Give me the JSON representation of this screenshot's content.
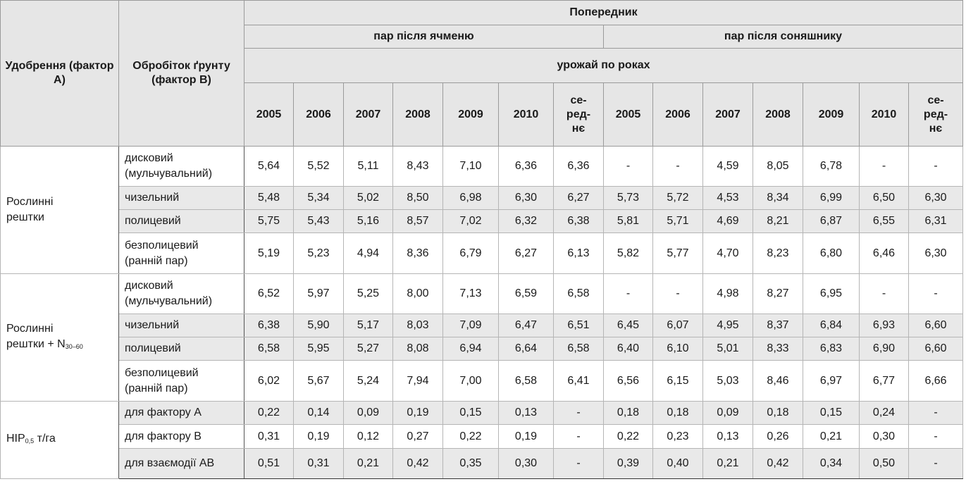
{
  "header": {
    "factor_a": "Удобрення (фактор А)",
    "factor_b": "Обробіток ґрунту (фактор В)",
    "predecessor": "Попередник",
    "subheader": "урожай по роках",
    "groups": [
      {
        "name": "пар після ячменю",
        "years": [
          "2005",
          "2006",
          "2007",
          "2008",
          "2009",
          "2010"
        ],
        "average": [
          "се-",
          "ред-",
          "нє"
        ]
      },
      {
        "name": "пар після соняшнику",
        "years": [
          "2005",
          "2006",
          "2007",
          "2008",
          "2009",
          "2010"
        ],
        "average": [
          "се-",
          "ред-",
          "нє"
        ]
      }
    ]
  },
  "body": [
    {
      "factor": {
        "lines": [
          "Рослинні",
          "рештки"
        ]
      },
      "rows": [
        {
          "treatment": [
            "дисковий",
            "(мульчувальний)"
          ],
          "values": [
            "5,64",
            "5,52",
            "5,11",
            "8,43",
            "7,10",
            "6,36",
            "6,36",
            "-",
            "-",
            "4,59",
            "8,05",
            "6,78",
            "-",
            "-"
          ]
        },
        {
          "treatment": [
            "чизельний"
          ],
          "values": [
            "5,48",
            "5,34",
            "5,02",
            "8,50",
            "6,98",
            "6,30",
            "6,27",
            "5,73",
            "5,72",
            "4,53",
            "8,34",
            "6,99",
            "6,50",
            "6,30"
          ]
        },
        {
          "treatment": [
            "полицевий"
          ],
          "values": [
            "5,75",
            "5,43",
            "5,16",
            "8,57",
            "7,02",
            "6,32",
            "6,38",
            "5,81",
            "5,71",
            "4,69",
            "8,21",
            "6,87",
            "6,55",
            "6,31"
          ]
        },
        {
          "treatment": [
            "безполицевий",
            "(ранній пар)"
          ],
          "values": [
            "5,19",
            "5,23",
            "4,94",
            "8,36",
            "6,79",
            "6,27",
            "6,13",
            "5,82",
            "5,77",
            "4,70",
            "8,23",
            "6,80",
            "6,46",
            "6,30"
          ]
        }
      ]
    },
    {
      "factor": {
        "lines": [
          "Рослинні",
          "рештки + N"
        ],
        "sub": "30–60"
      },
      "rows": [
        {
          "treatment": [
            "дисковий",
            "(мульчувальний)"
          ],
          "values": [
            "6,52",
            "5,97",
            "5,25",
            "8,00",
            "7,13",
            "6,59",
            "6,58",
            "-",
            "-",
            "4,98",
            "8,27",
            "6,95",
            "-",
            "-"
          ]
        },
        {
          "treatment": [
            "чизельний"
          ],
          "values": [
            "6,38",
            "5,90",
            "5,17",
            "8,03",
            "7,09",
            "6,47",
            "6,51",
            "6,45",
            "6,07",
            "4,95",
            "8,37",
            "6,84",
            "6,93",
            "6,60"
          ]
        },
        {
          "treatment": [
            "полицевий"
          ],
          "values": [
            "6,58",
            "5,95",
            "5,27",
            "8,08",
            "6,94",
            "6,64",
            "6,58",
            "6,40",
            "6,10",
            "5,01",
            "8,33",
            "6,83",
            "6,90",
            "6,60"
          ]
        },
        {
          "treatment": [
            "безполицевий",
            "(ранній пар)"
          ],
          "values": [
            "6,02",
            "5,67",
            "5,24",
            "7,94",
            "7,00",
            "6,58",
            "6,41",
            "6,56",
            "6,15",
            "5,03",
            "8,46",
            "6,97",
            "6,77",
            "6,66"
          ]
        }
      ]
    },
    {
      "factor": {
        "lines": [
          "НІР"
        ],
        "sub": "0,5",
        "after": " т/га"
      },
      "rows": [
        {
          "treatment": [
            "для фактору А"
          ],
          "values": [
            "0,22",
            "0,14",
            "0,09",
            "0,19",
            "0,15",
            "0,13",
            "-",
            "0,18",
            "0,18",
            "0,09",
            "0,18",
            "0,15",
            "0,24",
            "-"
          ]
        },
        {
          "treatment": [
            "для фактору В"
          ],
          "values": [
            "0,31",
            "0,19",
            "0,12",
            "0,27",
            "0,22",
            "0,19",
            "-",
            "0,22",
            "0,23",
            "0,13",
            "0,26",
            "0,21",
            "0,30",
            "-"
          ]
        },
        {
          "treatment": [
            "для взаємодії АВ"
          ],
          "values": [
            "0,51",
            "0,31",
            "0,21",
            "0,42",
            "0,35",
            "0,30",
            "-",
            "0,39",
            "0,40",
            "0,21",
            "0,42",
            "0,34",
            "0,50",
            "-"
          ]
        }
      ]
    }
  ]
}
